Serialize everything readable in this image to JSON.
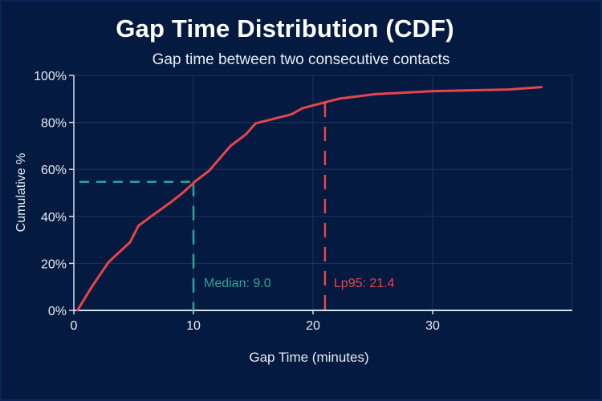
{
  "chart_data": {
    "type": "line",
    "title": "Gap Time Distribution (CDF)",
    "subtitle": "Gap time between two consecutive contacts",
    "xlabel": "Gap Time (minutes)",
    "ylabel": "Cumulative %",
    "xlim": [
      0,
      41.5
    ],
    "ylim": [
      0,
      100
    ],
    "x_ticks": [
      0,
      10,
      20,
      30
    ],
    "x_tick_labels": [
      "0",
      "10",
      "20",
      "30"
    ],
    "y_ticks": [
      0,
      20,
      40,
      60,
      80,
      100
    ],
    "y_tick_labels": [
      "0%",
      "20%",
      "40%",
      "60%",
      "80%",
      "100%"
    ],
    "grid": true,
    "series": [
      {
        "name": "CDF",
        "color": "#e8444a",
        "x": [
          0.3,
          1.5,
          2.9,
          4.7,
          5.4,
          6.6,
          8.1,
          9.1,
          9.9,
          10.1,
          11.3,
          13.1,
          14.4,
          15.2,
          18.2,
          19.1,
          20.9,
          22.2,
          25.2,
          30.1,
          36.3,
          39.1
        ],
        "y": [
          0,
          10,
          20.5,
          29,
          36,
          40.5,
          46,
          50,
          53.7,
          54.7,
          59.4,
          70,
          75,
          79.6,
          83.4,
          86,
          88.4,
          90.1,
          92,
          93.3,
          94,
          95
        ]
      }
    ],
    "annotations": [
      {
        "type": "median",
        "label": "Median: 9.0",
        "x_line": 10,
        "y_line": 54.7,
        "color": "#2aa59a"
      },
      {
        "type": "lp95",
        "label": "Lp95: 21.4",
        "x_line": 21,
        "y_top": 88.4,
        "color": "#e8444a"
      }
    ],
    "colors": {
      "background": "#041a40",
      "grid": "#1d3560",
      "axis": "#d8dde8",
      "text": "#e8ecf4"
    }
  }
}
